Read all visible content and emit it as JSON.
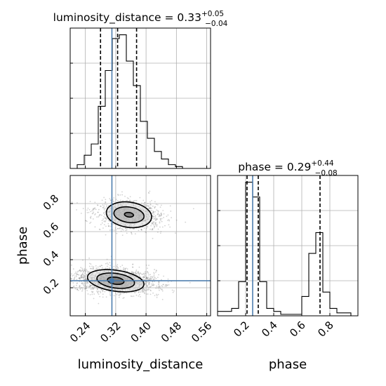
{
  "chart_data": {
    "type": "corner",
    "parameters": [
      "luminosity_distance",
      "phase"
    ],
    "truth": {
      "luminosity_distance": 0.31,
      "phase": 0.25
    },
    "colors": {
      "truth": "#4477aa",
      "hist": "#000000",
      "density": "#000000",
      "samples": "#808080"
    },
    "grid": true,
    "marginals": [
      {
        "parameter": "luminosity_distance",
        "title_main": "luminosity_distance = 0.33",
        "title_sup": "+0.05",
        "title_sub": "−0.04",
        "quantiles": [
          0.28,
          0.325,
          0.375
        ],
        "xlim": [
          0.2,
          0.57
        ],
        "bin_edges": [
          0.2,
          0.2185,
          0.237,
          0.2555,
          0.274,
          0.2925,
          0.311,
          0.3295,
          0.348,
          0.3665,
          0.385,
          0.4035,
          0.422,
          0.4405,
          0.459,
          0.4775,
          0.496,
          0.5145,
          0.533,
          0.5515,
          0.57
        ],
        "counts": [
          0,
          2,
          7,
          13,
          33,
          52,
          69,
          71,
          57,
          44,
          25,
          16,
          9,
          5,
          2,
          1,
          0,
          0,
          0,
          0
        ],
        "xticks": [
          "0.24",
          "0.32",
          "0.40",
          "0.48",
          "0.56"
        ],
        "xtick_values": [
          0.24,
          0.32,
          0.4,
          0.48,
          0.56
        ],
        "xlabel": "luminosity_distance"
      },
      {
        "parameter": "phase",
        "title_main": "phase = 0.29",
        "title_sup": "+0.44",
        "title_sub": "−0.08",
        "quantiles": [
          0.21,
          0.29,
          0.73
        ],
        "xlim": [
          0.0,
          1.0
        ],
        "bin_edges": [
          0.0,
          0.05,
          0.1,
          0.15,
          0.2,
          0.25,
          0.3,
          0.35,
          0.4,
          0.45,
          0.5,
          0.55,
          0.6,
          0.65,
          0.7,
          0.75,
          0.8,
          0.85,
          0.9,
          0.95,
          1.0
        ],
        "counts": [
          3,
          3,
          5,
          23,
          90,
          80,
          23,
          5,
          3,
          1,
          1,
          1,
          13,
          42,
          56,
          16,
          5,
          2,
          2,
          0
        ],
        "xticks": [
          "0.2",
          "0.4",
          "0.6",
          "0.8"
        ],
        "xtick_values": [
          0.2,
          0.4,
          0.6,
          0.8
        ],
        "xlabel": "phase"
      }
    ],
    "joint": {
      "x_parameter": "luminosity_distance",
      "y_parameter": "phase",
      "xlim": [
        0.2,
        0.57
      ],
      "ylim": [
        0.0,
        1.0
      ],
      "ylabel": "phase",
      "yticks": [
        "0.2",
        "0.4",
        "0.6",
        "0.8"
      ],
      "ytick_values": [
        0.2,
        0.4,
        0.6,
        0.8
      ],
      "modes": [
        {
          "center": [
            0.32,
            0.25
          ],
          "spread": [
            0.055,
            0.05
          ],
          "weight": 0.62
        },
        {
          "center": [
            0.355,
            0.72
          ],
          "spread": [
            0.045,
            0.06
          ],
          "weight": 0.38
        }
      ],
      "contour_levels": [
        {
          "mode": 0,
          "rx": 0.022,
          "ry": 0.025
        },
        {
          "mode": 0,
          "rx": 0.05,
          "ry": 0.052
        },
        {
          "mode": 0,
          "rx": 0.075,
          "ry": 0.075
        },
        {
          "mode": 1,
          "rx": 0.012,
          "ry": 0.016
        },
        {
          "mode": 1,
          "rx": 0.04,
          "ry": 0.055
        },
        {
          "mode": 1,
          "rx": 0.06,
          "ry": 0.09
        }
      ]
    }
  }
}
